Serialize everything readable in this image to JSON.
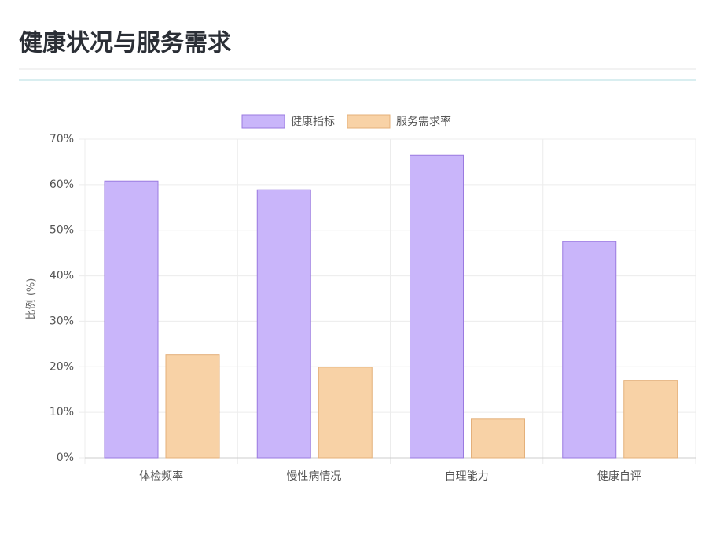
{
  "header": {
    "title": "健康状况与服务需求"
  },
  "chart_data": {
    "type": "bar",
    "y_label": "比例 (%)",
    "categories": [
      "体检频率",
      "慢性病情况",
      "自理能力",
      "健康自评"
    ],
    "series": [
      {
        "name": "健康指标",
        "color": "#c9b5fa",
        "values": [
          60.8,
          58.9,
          66.5,
          47.5
        ]
      },
      {
        "name": "服务需求率",
        "color": "#f8d2a6",
        "values": [
          22.7,
          19.9,
          8.5,
          17.0
        ]
      }
    ],
    "ylim": [
      0,
      70
    ],
    "yticks": [
      {
        "value": 0,
        "label": "0%"
      },
      {
        "value": 10,
        "label": "10%"
      },
      {
        "value": 20,
        "label": "20%"
      },
      {
        "value": 30,
        "label": "30%"
      },
      {
        "value": 40,
        "label": "40%"
      },
      {
        "value": 50,
        "label": "50%"
      },
      {
        "value": 60,
        "label": "60%"
      },
      {
        "value": 70,
        "label": "70%"
      }
    ],
    "grid": true,
    "legend": "top"
  }
}
